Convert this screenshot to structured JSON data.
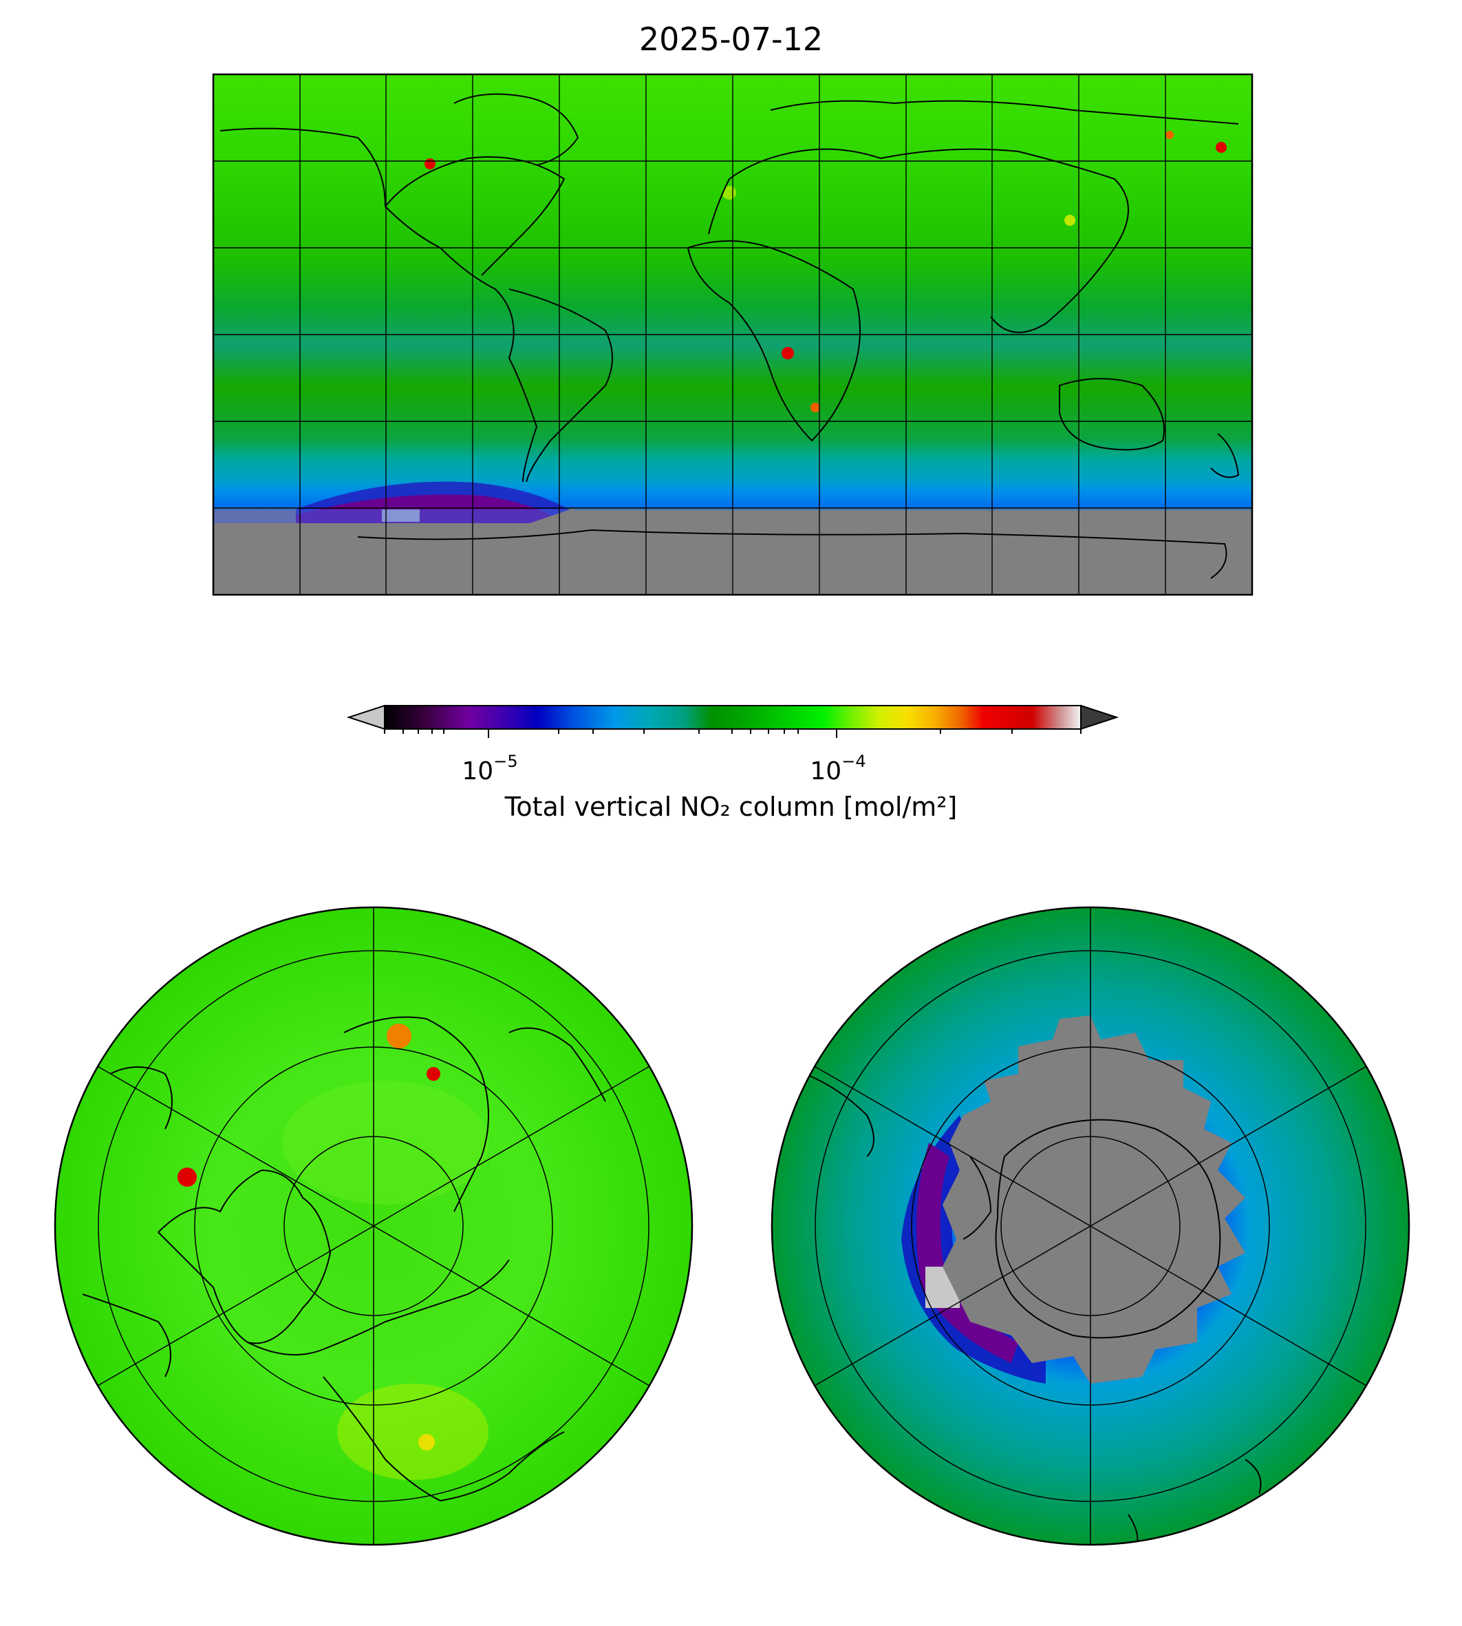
{
  "map": {
    "title": "2025-07-12",
    "panels": [
      "global plate carree",
      "north polar stereographic",
      "south polar stereographic"
    ]
  },
  "colorbar": {
    "label": "Total vertical NO₂ column [mol/m²]",
    "scale": "log",
    "ticks": [
      {
        "base": "10",
        "exp": "−5",
        "value": 1e-05
      },
      {
        "base": "10",
        "exp": "−4",
        "value": 0.0001
      }
    ],
    "range": [
      5e-06,
      0.0005
    ],
    "colors": [
      "#000000",
      "#3a0040",
      "#6a0090",
      "#5a00b0",
      "#0000b0",
      "#0040e0",
      "#0090f0",
      "#00a8c0",
      "#00a890",
      "#009000",
      "#00a000",
      "#00c800",
      "#00e800",
      "#60f000",
      "#c0f000",
      "#f0e000",
      "#f8b000",
      "#f06000",
      "#f00000",
      "#d00000",
      "#c80000",
      "#f0f0f0"
    ],
    "under_color": "#c8c8c8",
    "over_color": "#3a3a3a"
  },
  "colors": {
    "land_high_lat_mask": "#808080",
    "background": "#ffffff",
    "coastline": "#000000"
  }
}
